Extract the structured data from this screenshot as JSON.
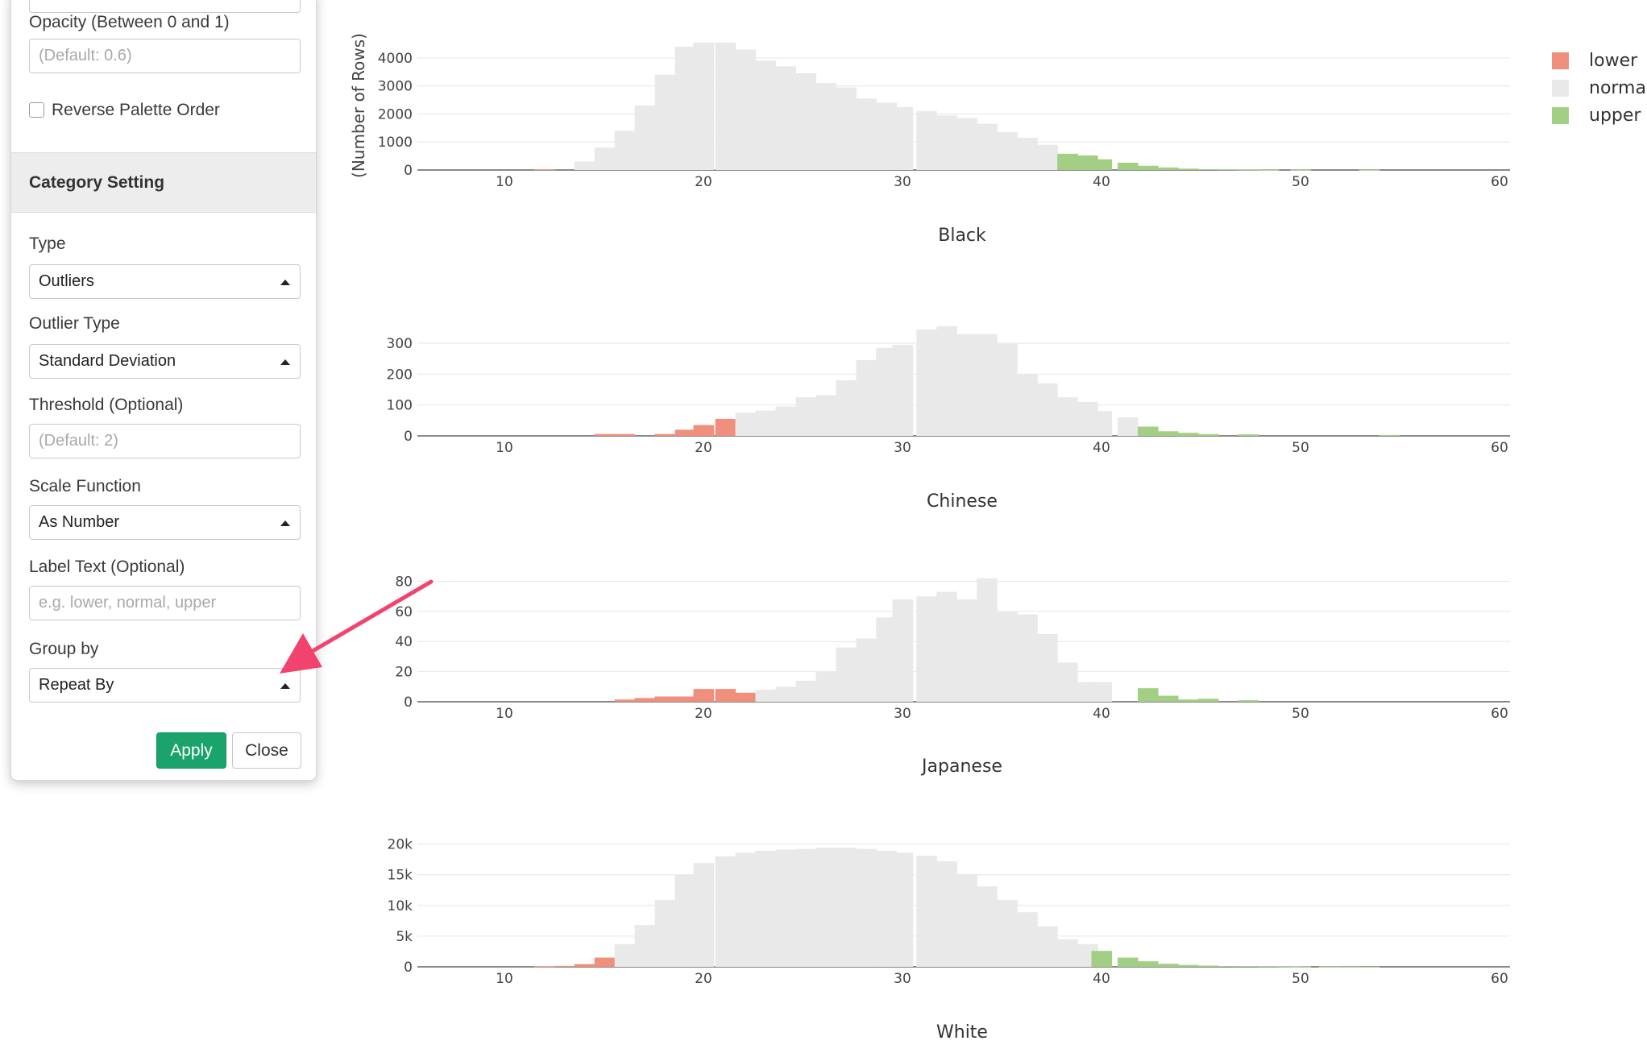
{
  "panel": {
    "opacity_label": "Opacity (Between 0 and 1)",
    "opacity_placeholder": "(Default: 0.6)",
    "reverse_palette_label": "Reverse Palette Order",
    "category_header": "Category Setting",
    "type_label": "Type",
    "type_value": "Outliers",
    "outlier_type_label": "Outlier Type",
    "outlier_type_value": "Standard Deviation",
    "threshold_label": "Threshold (Optional)",
    "threshold_placeholder": "(Default: 2)",
    "scale_label": "Scale Function",
    "scale_value": "As Number",
    "label_text_label": "Label Text (Optional)",
    "label_text_placeholder": "e.g. lower, normal, upper",
    "group_by_label": "Group by",
    "group_by_value": "Repeat By",
    "apply_label": "Apply",
    "close_label": "Close"
  },
  "chart_data": {
    "type": "bar",
    "ylabel": "(Number of Rows)",
    "xlim": [
      5.7,
      60
    ],
    "x_ticks": [
      10,
      20,
      30,
      40,
      50,
      60
    ],
    "bin_width": 1,
    "grid": true,
    "legend_position": "top-right",
    "legend": [
      {
        "name": "lower",
        "color": "#f0907c"
      },
      {
        "name": "normal",
        "color": "#e9e9e9"
      },
      {
        "name": "upper",
        "color": "#a3cf84"
      }
    ],
    "panels": [
      {
        "title": "Black",
        "ylim": [
          0,
          4600
        ],
        "y_ticks": [
          {
            "v": 0,
            "t": "0"
          },
          {
            "v": 1000,
            "t": "1000"
          },
          {
            "v": 2000,
            "t": "2000"
          },
          {
            "v": 3000,
            "t": "3000"
          },
          {
            "v": 4000,
            "t": "4000"
          }
        ],
        "bins": [
          [
            12,
            20,
            "lower"
          ],
          [
            14,
            300,
            "normal"
          ],
          [
            15,
            800,
            "normal"
          ],
          [
            16,
            1400,
            "normal"
          ],
          [
            17,
            2300,
            "normal"
          ],
          [
            18,
            3400,
            "normal"
          ],
          [
            19,
            4400,
            "normal"
          ],
          [
            20,
            4550,
            "normal"
          ],
          [
            21,
            4550,
            "normal"
          ],
          [
            22,
            4300,
            "normal"
          ],
          [
            23,
            3900,
            "normal"
          ],
          [
            24,
            3700,
            "normal"
          ],
          [
            25,
            3450,
            "normal"
          ],
          [
            26,
            3100,
            "normal"
          ],
          [
            27,
            2950,
            "normal"
          ],
          [
            28,
            2550,
            "normal"
          ],
          [
            29,
            2400,
            "normal"
          ],
          [
            30,
            2250,
            "normal"
          ],
          [
            31,
            2100,
            "normal"
          ],
          [
            32,
            1950,
            "normal"
          ],
          [
            33,
            1850,
            "normal"
          ],
          [
            34,
            1650,
            "normal"
          ],
          [
            35,
            1350,
            "normal"
          ],
          [
            36,
            1150,
            "normal"
          ],
          [
            37,
            900,
            "normal"
          ],
          [
            38,
            580,
            "upper"
          ],
          [
            39,
            520,
            "upper"
          ],
          [
            40,
            380,
            "upper"
          ],
          [
            41,
            260,
            "upper"
          ],
          [
            42,
            150,
            "upper"
          ],
          [
            43,
            90,
            "upper"
          ],
          [
            44,
            50,
            "upper"
          ],
          [
            45,
            30,
            "upper"
          ],
          [
            46,
            20,
            "upper"
          ],
          [
            47,
            15,
            "upper"
          ],
          [
            48,
            10,
            "upper"
          ],
          [
            50,
            10,
            "upper"
          ],
          [
            53,
            8,
            "upper"
          ]
        ]
      },
      {
        "title": "Chinese",
        "ylim": [
          0,
          360
        ],
        "y_ticks": [
          {
            "v": 0,
            "t": "0"
          },
          {
            "v": 100,
            "t": "100"
          },
          {
            "v": 200,
            "t": "200"
          },
          {
            "v": 300,
            "t": "300"
          }
        ],
        "bins": [
          [
            15,
            6,
            "lower"
          ],
          [
            16,
            6,
            "lower"
          ],
          [
            18,
            6,
            "lower"
          ],
          [
            19,
            20,
            "lower"
          ],
          [
            20,
            35,
            "lower"
          ],
          [
            21,
            55,
            "lower"
          ],
          [
            22,
            75,
            "normal"
          ],
          [
            23,
            82,
            "normal"
          ],
          [
            24,
            95,
            "normal"
          ],
          [
            25,
            125,
            "normal"
          ],
          [
            26,
            132,
            "normal"
          ],
          [
            27,
            180,
            "normal"
          ],
          [
            28,
            245,
            "normal"
          ],
          [
            29,
            285,
            "normal"
          ],
          [
            30,
            295,
            "normal"
          ],
          [
            31,
            345,
            "normal"
          ],
          [
            32,
            355,
            "normal"
          ],
          [
            33,
            330,
            "normal"
          ],
          [
            34,
            330,
            "normal"
          ],
          [
            35,
            298,
            "normal"
          ],
          [
            36,
            200,
            "normal"
          ],
          [
            37,
            170,
            "normal"
          ],
          [
            38,
            125,
            "normal"
          ],
          [
            39,
            110,
            "normal"
          ],
          [
            40,
            80,
            "normal"
          ],
          [
            41,
            60,
            "normal"
          ],
          [
            42,
            30,
            "upper"
          ],
          [
            43,
            15,
            "upper"
          ],
          [
            44,
            10,
            "upper"
          ],
          [
            45,
            6,
            "upper"
          ],
          [
            47,
            5,
            "upper"
          ],
          [
            54,
            3,
            "upper"
          ]
        ]
      },
      {
        "title": "Japanese",
        "ylim": [
          0,
          84
        ],
        "y_ticks": [
          {
            "v": 0,
            "t": "0"
          },
          {
            "v": 20,
            "t": "20"
          },
          {
            "v": 40,
            "t": "40"
          },
          {
            "v": 60,
            "t": "60"
          },
          {
            "v": 80,
            "t": "80"
          }
        ],
        "bins": [
          [
            16,
            1.5,
            "lower"
          ],
          [
            17,
            2.5,
            "lower"
          ],
          [
            18,
            3.5,
            "lower"
          ],
          [
            19,
            3.5,
            "lower"
          ],
          [
            20,
            8.5,
            "lower"
          ],
          [
            21,
            8.5,
            "lower"
          ],
          [
            22,
            6,
            "lower"
          ],
          [
            23,
            8,
            "normal"
          ],
          [
            24,
            10,
            "normal"
          ],
          [
            25,
            14,
            "normal"
          ],
          [
            26,
            20,
            "normal"
          ],
          [
            27,
            36,
            "normal"
          ],
          [
            28,
            42,
            "normal"
          ],
          [
            29,
            56,
            "normal"
          ],
          [
            30,
            68,
            "normal"
          ],
          [
            31,
            70,
            "normal"
          ],
          [
            32,
            73,
            "normal"
          ],
          [
            33,
            68,
            "normal"
          ],
          [
            34,
            82,
            "normal"
          ],
          [
            35,
            60,
            "normal"
          ],
          [
            36,
            58,
            "normal"
          ],
          [
            37,
            45,
            "normal"
          ],
          [
            38,
            26,
            "normal"
          ],
          [
            39,
            13,
            "normal"
          ],
          [
            40,
            13,
            "normal"
          ],
          [
            42,
            9,
            "upper"
          ],
          [
            43,
            4,
            "upper"
          ],
          [
            44,
            1.5,
            "upper"
          ],
          [
            45,
            2,
            "upper"
          ],
          [
            47,
            1,
            "upper"
          ]
        ]
      },
      {
        "title": "White",
        "ylim": [
          0,
          21000
        ],
        "y_ticks": [
          {
            "v": 0,
            "t": "0"
          },
          {
            "v": 5000,
            "t": "5k"
          },
          {
            "v": 10000,
            "t": "10k"
          },
          {
            "v": 15000,
            "t": "15k"
          },
          {
            "v": 20000,
            "t": "20k"
          }
        ],
        "bins": [
          [
            12,
            80,
            "lower"
          ],
          [
            13,
            150,
            "lower"
          ],
          [
            14,
            450,
            "lower"
          ],
          [
            15,
            1500,
            "lower"
          ],
          [
            16,
            3700,
            "normal"
          ],
          [
            17,
            6800,
            "normal"
          ],
          [
            18,
            10900,
            "normal"
          ],
          [
            19,
            15000,
            "normal"
          ],
          [
            20,
            16900,
            "normal"
          ],
          [
            21,
            18000,
            "normal"
          ],
          [
            22,
            18600,
            "normal"
          ],
          [
            23,
            18900,
            "normal"
          ],
          [
            24,
            19100,
            "normal"
          ],
          [
            25,
            19200,
            "normal"
          ],
          [
            26,
            19400,
            "normal"
          ],
          [
            27,
            19400,
            "normal"
          ],
          [
            28,
            19200,
            "normal"
          ],
          [
            29,
            18900,
            "normal"
          ],
          [
            30,
            18600,
            "normal"
          ],
          [
            31,
            18100,
            "normal"
          ],
          [
            32,
            17200,
            "normal"
          ],
          [
            33,
            15100,
            "normal"
          ],
          [
            34,
            13100,
            "normal"
          ],
          [
            35,
            10900,
            "normal"
          ],
          [
            36,
            8900,
            "normal"
          ],
          [
            37,
            6600,
            "normal"
          ],
          [
            38,
            4500,
            "normal"
          ],
          [
            39,
            3700,
            "normal"
          ],
          [
            40,
            2600,
            "upper"
          ],
          [
            41,
            1500,
            "upper"
          ],
          [
            42,
            900,
            "upper"
          ],
          [
            43,
            500,
            "upper"
          ],
          [
            44,
            300,
            "upper"
          ],
          [
            45,
            200,
            "upper"
          ],
          [
            46,
            120,
            "upper"
          ],
          [
            47,
            100,
            "upper"
          ],
          [
            48,
            80,
            "upper"
          ],
          [
            49,
            60,
            "upper"
          ],
          [
            50,
            50,
            "upper"
          ],
          [
            51,
            40,
            "upper"
          ],
          [
            52,
            30,
            "upper"
          ],
          [
            53,
            20,
            "upper"
          ]
        ]
      }
    ]
  }
}
